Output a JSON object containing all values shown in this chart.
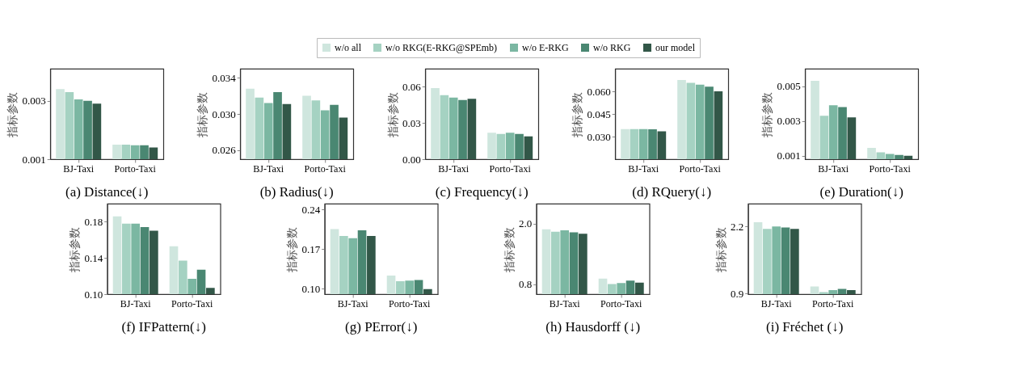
{
  "chart_data": [
    {
      "type": "bar",
      "title": "(a)  Distance(↓)",
      "ylabel": "指标参数",
      "categories": [
        "BJ-Taxi",
        "Porto-Taxi"
      ],
      "legend": "top",
      "ylim": [
        0.001,
        0.0041
      ],
      "yticks": [
        0.001,
        0.003
      ],
      "series": [
        {
          "name": "w/o all",
          "color": "#cfe6de",
          "values": [
            0.0034,
            0.0015
          ]
        },
        {
          "name": "w/o RKG(E-RKG@SPEmb)",
          "color": "#a5d2c2",
          "values": [
            0.0033,
            0.0015
          ]
        },
        {
          "name": "w/o E-RKG",
          "color": "#7bb7a2",
          "values": [
            0.00305,
            0.00148
          ]
        },
        {
          "name": "w/o RKG",
          "color": "#4a8772",
          "values": [
            0.003,
            0.00148
          ]
        },
        {
          "name": "our model",
          "color": "#325748",
          "values": [
            0.0029,
            0.0014
          ]
        }
      ]
    },
    {
      "type": "bar",
      "title": "(b)  Radius(↓)",
      "ylabel": "指标参数",
      "categories": [
        "BJ-Taxi",
        "Porto-Taxi"
      ],
      "ylim": [
        0.025,
        0.035
      ],
      "yticks": [
        {
          "value": 0.026,
          "label": "0.026"
        },
        {
          "value": 0.03,
          "label": "0.030"
        },
        {
          "value": 0.034,
          "label": "0.034"
        }
      ],
      "series": [
        {
          "name": "w/o all",
          "color": "#cfe6de",
          "values": [
            0.0328,
            0.032
          ]
        },
        {
          "name": "w/o RKG(E-RKG@SPEmb)",
          "color": "#a5d2c2",
          "values": [
            0.0318,
            0.0315
          ]
        },
        {
          "name": "w/o E-RKG",
          "color": "#7bb7a2",
          "values": [
            0.0312,
            0.0304
          ]
        },
        {
          "name": "w/o RKG",
          "color": "#4a8772",
          "values": [
            0.0324,
            0.031
          ]
        },
        {
          "name": "our model",
          "color": "#325748",
          "values": [
            0.0311,
            0.0296
          ]
        }
      ]
    },
    {
      "type": "bar",
      "title": "(c)  Frequency(↓)",
      "ylabel": "指标参数",
      "categories": [
        "BJ-Taxi",
        "Porto-Taxi"
      ],
      "ylim": [
        0,
        0.075
      ],
      "yticks": [
        {
          "value": 0,
          "label": "0.00"
        },
        0.03,
        0.06
      ],
      "series": [
        {
          "name": "w/o all",
          "color": "#cfe6de",
          "values": [
            0.059,
            0.022
          ]
        },
        {
          "name": "w/o RKG(E-RKG@SPEmb)",
          "color": "#a5d2c2",
          "values": [
            0.053,
            0.021
          ]
        },
        {
          "name": "w/o E-RKG",
          "color": "#7bb7a2",
          "values": [
            0.051,
            0.022
          ]
        },
        {
          "name": "w/o RKG",
          "color": "#4a8772",
          "values": [
            0.049,
            0.021
          ]
        },
        {
          "name": "our model",
          "color": "#325748",
          "values": [
            0.05,
            0.019
          ]
        }
      ]
    },
    {
      "type": "bar",
      "title": "(d)  RQuery(↓)",
      "ylabel": "指标参数",
      "categories": [
        "BJ-Taxi",
        "Porto-Taxi"
      ],
      "ylim": [
        0.015,
        0.075
      ],
      "yticks": [
        {
          "value": 0.03,
          "label": "0.030"
        },
        {
          "value": 0.045,
          "label": "0.045"
        },
        {
          "value": 0.06,
          "label": "0.060"
        }
      ],
      "series": [
        {
          "name": "w/o all",
          "color": "#cfe6de",
          "values": [
            0.035,
            0.0675
          ]
        },
        {
          "name": "w/o RKG(E-RKG@SPEmb)",
          "color": "#a5d2c2",
          "values": [
            0.035,
            0.0656
          ]
        },
        {
          "name": "w/o E-RKG",
          "color": "#7bb7a2",
          "values": [
            0.035,
            0.0644
          ]
        },
        {
          "name": "w/o RKG",
          "color": "#4a8772",
          "values": [
            0.0348,
            0.0631
          ]
        },
        {
          "name": "our model",
          "color": "#325748",
          "values": [
            0.0335,
            0.06
          ]
        }
      ]
    },
    {
      "type": "bar",
      "title": "(e)  Duration(↓)",
      "ylabel": "指标参数",
      "categories": [
        "BJ-Taxi",
        "Porto-Taxi"
      ],
      "ylim": [
        0.0008,
        0.006
      ],
      "yticks": [
        0.001,
        0.003,
        0.005
      ],
      "series": [
        {
          "name": "w/o all",
          "color": "#cfe6de",
          "values": [
            0.0053,
            0.00145
          ]
        },
        {
          "name": "w/o RKG(E-RKG@SPEmb)",
          "color": "#a5d2c2",
          "values": [
            0.0033,
            0.0012
          ]
        },
        {
          "name": "w/o E-RKG",
          "color": "#7bb7a2",
          "values": [
            0.0039,
            0.0011
          ]
        },
        {
          "name": "w/o RKG",
          "color": "#4a8772",
          "values": [
            0.0038,
            0.00104
          ]
        },
        {
          "name": "our model",
          "color": "#325748",
          "values": [
            0.0032,
            0.001
          ]
        }
      ]
    },
    {
      "type": "bar",
      "title": "(f)  IFPattern(↓)",
      "ylabel": "指标参数",
      "categories": [
        "BJ-Taxi",
        "Porto-Taxi"
      ],
      "ylim": [
        0.1,
        0.2
      ],
      "yticks": [
        {
          "value": 0.1,
          "label": "0.10"
        },
        0.14,
        0.18
      ],
      "series": [
        {
          "name": "w/o all",
          "color": "#cfe6de",
          "values": [
            0.186,
            0.153
          ]
        },
        {
          "name": "w/o RKG(E-RKG@SPEmb)",
          "color": "#a5d2c2",
          "values": [
            0.178,
            0.137
          ]
        },
        {
          "name": "w/o E-RKG",
          "color": "#7bb7a2",
          "values": [
            0.178,
            0.117
          ]
        },
        {
          "name": "w/o RKG",
          "color": "#4a8772",
          "values": [
            0.174,
            0.127
          ]
        },
        {
          "name": "our model",
          "color": "#325748",
          "values": [
            0.17,
            0.107
          ]
        }
      ]
    },
    {
      "type": "bar",
      "title": "(g)  PError(↓)",
      "ylabel": "指标参数",
      "categories": [
        "BJ-Taxi",
        "Porto-Taxi"
      ],
      "ylim": [
        0.09,
        0.25
      ],
      "yticks": [
        {
          "value": 0.1,
          "label": "0.10"
        },
        0.17,
        0.24
      ],
      "series": [
        {
          "name": "w/o all",
          "color": "#cfe6de",
          "values": [
            0.205,
            0.123
          ]
        },
        {
          "name": "w/o RKG(E-RKG@SPEmb)",
          "color": "#a5d2c2",
          "values": [
            0.193,
            0.113
          ]
        },
        {
          "name": "w/o E-RKG",
          "color": "#7bb7a2",
          "values": [
            0.189,
            0.114
          ]
        },
        {
          "name": "w/o RKG",
          "color": "#4a8772",
          "values": [
            0.203,
            0.115
          ]
        },
        {
          "name": "our model",
          "color": "#325748",
          "values": [
            0.193,
            0.099
          ]
        }
      ]
    },
    {
      "type": "bar",
      "title": "(h)  Hausdorff (↓)",
      "ylabel": "指标参数",
      "categories": [
        "BJ-Taxi",
        "Porto-Taxi"
      ],
      "ylim": [
        0.6,
        2.4
      ],
      "yticks": [
        0.8,
        {
          "value": 2,
          "label": "2.0"
        }
      ],
      "series": [
        {
          "name": "w/o all",
          "color": "#cfe6de",
          "values": [
            1.89,
            0.91
          ]
        },
        {
          "name": "w/o RKG(E-RKG@SPEmb)",
          "color": "#a5d2c2",
          "values": [
            1.84,
            0.8
          ]
        },
        {
          "name": "w/o E-RKG",
          "color": "#7bb7a2",
          "values": [
            1.87,
            0.82
          ]
        },
        {
          "name": "w/o RKG",
          "color": "#4a8772",
          "values": [
            1.83,
            0.87
          ]
        },
        {
          "name": "our model",
          "color": "#325748",
          "values": [
            1.8,
            0.83
          ]
        }
      ]
    },
    {
      "type": "bar",
      "title": "(i)  Fréchet (↓)",
      "ylabel": "指标参数",
      "categories": [
        "BJ-Taxi",
        "Porto-Taxi"
      ],
      "ylim": [
        0.89,
        2.64
      ],
      "yticks": [
        0.9,
        2.2
      ],
      "series": [
        {
          "name": "w/o all",
          "color": "#cfe6de",
          "values": [
            2.28,
            1.04
          ]
        },
        {
          "name": "w/o RKG(E-RKG@SPEmb)",
          "color": "#a5d2c2",
          "values": [
            2.15,
            0.93
          ]
        },
        {
          "name": "w/o E-RKG",
          "color": "#7bb7a2",
          "values": [
            2.2,
            0.97
          ]
        },
        {
          "name": "w/o RKG",
          "color": "#4a8772",
          "values": [
            2.18,
            0.99
          ]
        },
        {
          "name": "our model",
          "color": "#325748",
          "values": [
            2.15,
            0.97
          ]
        }
      ]
    }
  ]
}
